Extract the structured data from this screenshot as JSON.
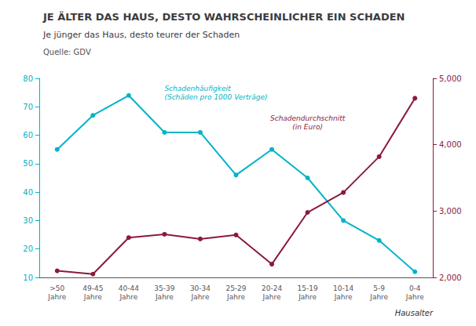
{
  "chart_data": {
    "type": "line",
    "title": "JE ÄLTER DAS HAUS, DESTO WAHRSCHEINLICHER EIN SCHADEN",
    "subtitle": "Je jünger das Haus, desto teurer der Schaden",
    "source": "Quelle: GDV",
    "xlabel": "Hausalter",
    "categories": [
      ">50\nJahre",
      "49-45\nJahre",
      "40-44\nJahre",
      "35-39\nJahre",
      "30-34\nJahre",
      "25-29\nJahre",
      "20-24\nJahre",
      "15-19\nJahre",
      "10-14\nJahre",
      "5-9\nJahre",
      "0-4\nJahre"
    ],
    "series": [
      {
        "color": "#00B4C8",
        "marker": "circle",
        "values": [
          55,
          67,
          74,
          61,
          61,
          46,
          55,
          45,
          30,
          23,
          12
        ]
      },
      {
        "color": "#8B1A3C",
        "marker": "circle",
        "axis": "y2",
        "values": [
          2100,
          2050,
          2600,
          2650,
          2580,
          2640,
          2200,
          2980,
          3280,
          3820,
          4700
        ]
      }
    ],
    "ylim": [
      10,
      80
    ],
    "yticks": [
      10,
      20,
      30,
      40,
      50,
      60,
      70,
      80
    ],
    "y2lim": [
      2000,
      5000
    ],
    "y2ticks": [
      2000,
      3000,
      4000,
      5000
    ],
    "grid": false,
    "annotations": [
      {
        "text": "Schadenhäufigkeit\n(Schäden pro 1000 Verträge)",
        "x": 3.3,
        "y": 72,
        "color": "#00B4C8",
        "align": "left"
      },
      {
        "text": "Schadendurchschnitt\n(in Euro)",
        "x": 7.0,
        "y": 4200,
        "color": "#8B1A3C",
        "axis": "y2",
        "align": "center"
      }
    ]
  }
}
